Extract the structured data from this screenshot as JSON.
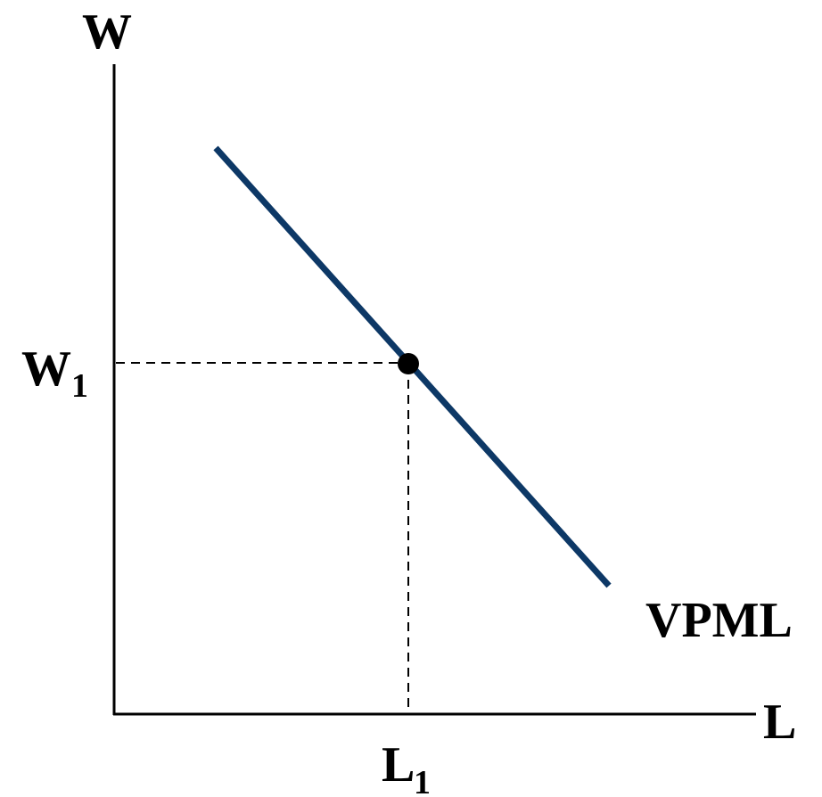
{
  "diagram": {
    "axis_y_label": "W",
    "axis_x_label": "L",
    "wage_label": "W",
    "wage_subscript": "1",
    "labor_label": "L",
    "labor_subscript": "1",
    "curve_label": "VPML",
    "colors": {
      "curve": "#0d3866",
      "axes": "#000000",
      "guides": "#000000",
      "point": "#000000"
    }
  }
}
